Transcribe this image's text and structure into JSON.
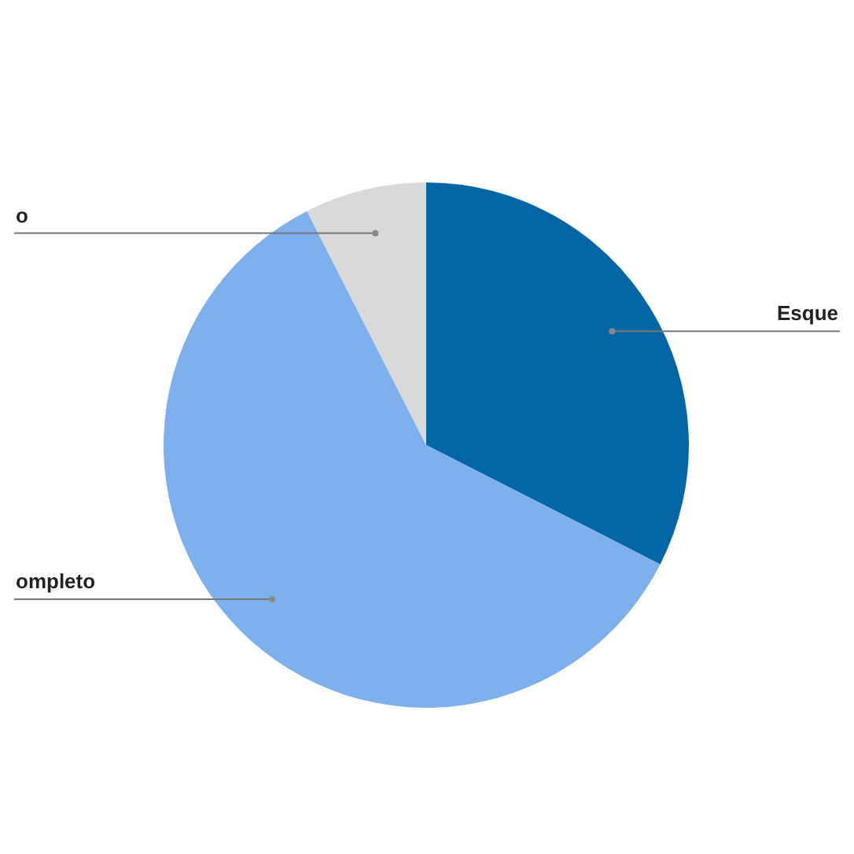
{
  "chart_data": {
    "type": "pie",
    "categories": [
      "Esque",
      "ompleto",
      "o"
    ],
    "values": [
      32.5,
      60,
      7.5
    ],
    "colors": [
      "#0566a5",
      "#7fb0ee",
      "#d9d9d9"
    ],
    "legend": false
  }
}
